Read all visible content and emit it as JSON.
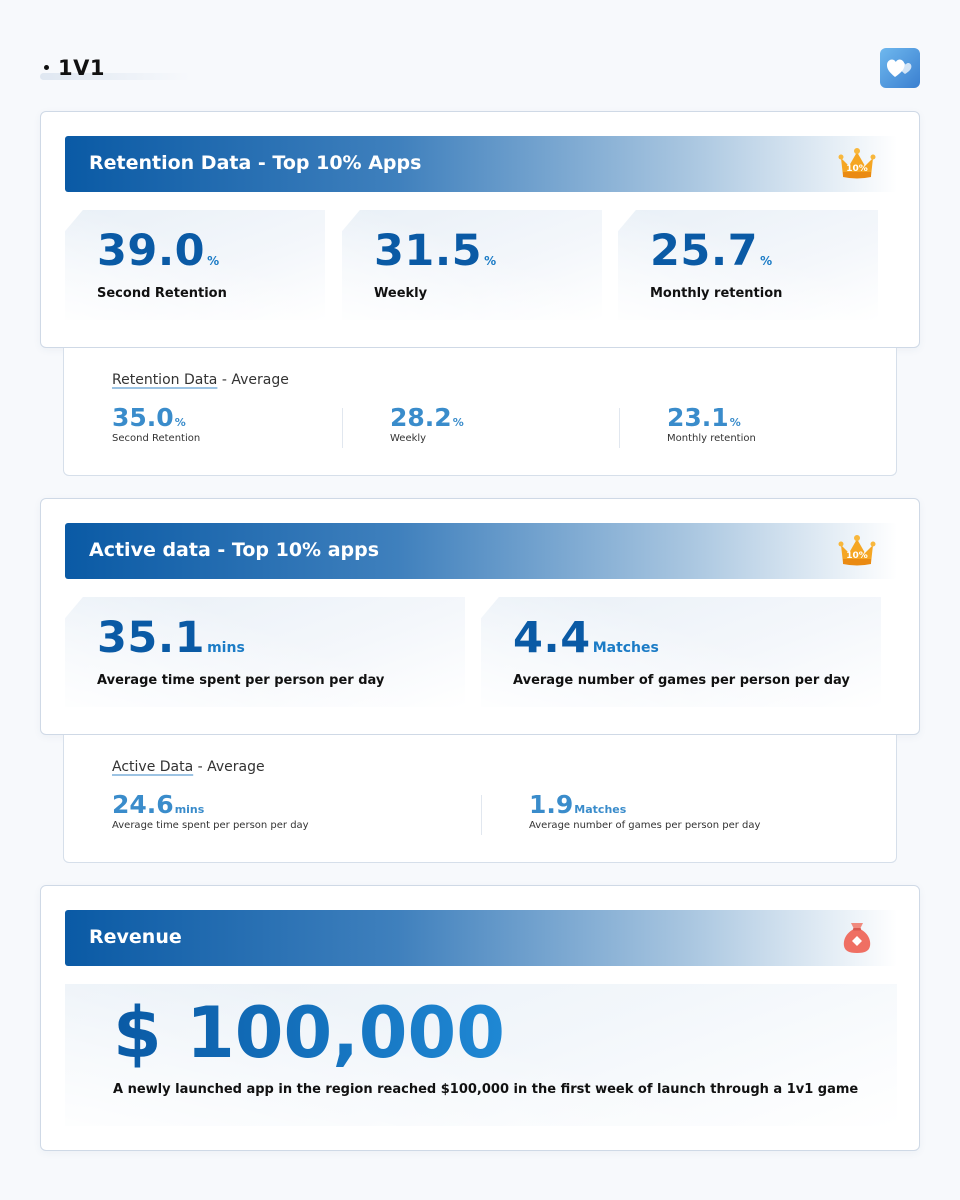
{
  "header": {
    "title": "1V1",
    "logo_icon": "hearts-logo-icon"
  },
  "retention_top": {
    "title": "Retention Data - Top 10% Apps",
    "badge_icon": "crown-icon",
    "badge_text": "10%",
    "stats": [
      {
        "value": "39.0",
        "unit": "%",
        "label": "Second Retention"
      },
      {
        "value": "31.5",
        "unit": "%",
        "label": "Weekly"
      },
      {
        "value": "25.7",
        "unit": "%",
        "label": "Monthly retention"
      }
    ]
  },
  "retention_avg": {
    "title_underlined": "Retention Data",
    "title_rest": " - Average",
    "stats": [
      {
        "value": "35.0",
        "unit": "%",
        "label": "Second Retention"
      },
      {
        "value": "28.2",
        "unit": "%",
        "label": "Weekly"
      },
      {
        "value": "23.1",
        "unit": "%",
        "label": "Monthly retention"
      }
    ]
  },
  "active_top": {
    "title": "Active data - Top 10% apps",
    "badge_icon": "crown-icon",
    "badge_text": "10%",
    "stats": [
      {
        "value": "35.1",
        "unit": "mins",
        "label": "Average time spent per person per day"
      },
      {
        "value": "4.4",
        "unit": "Matches",
        "label": "Average number of games per person per day"
      }
    ]
  },
  "active_avg": {
    "title_underlined": "Active Data",
    "title_rest": " - Average",
    "stats": [
      {
        "value": "24.6",
        "unit": "mins",
        "label": "Average time spent per person per day"
      },
      {
        "value": "1.9",
        "unit": "Matches",
        "label": "Average number of games per person per day"
      }
    ]
  },
  "revenue": {
    "title": "Revenue",
    "badge_icon": "money-bag-icon",
    "value": "$ 100,000",
    "description": "A newly launched app in the region reached $100,000 in the first week of launch through a 1v1 game"
  },
  "colors": {
    "primary": "#0a5aa5",
    "accent": "#1c7cc6",
    "average_value": "#3a8ccb",
    "crown": "#f5a623",
    "money_bag": "#ef6f63"
  }
}
